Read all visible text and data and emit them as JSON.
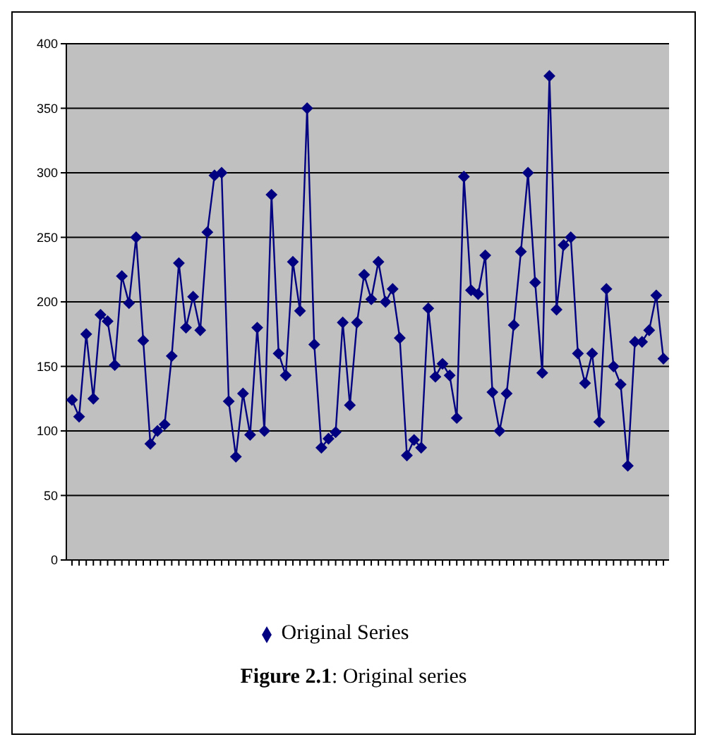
{
  "chart_data": {
    "type": "line",
    "categories": [
      null,
      null,
      null,
      null,
      null,
      null,
      null,
      null,
      null,
      null,
      null,
      null,
      null,
      null,
      null,
      null,
      null,
      null,
      null,
      null,
      null,
      null,
      null,
      null,
      null,
      null,
      null,
      null,
      null,
      null,
      null,
      null,
      null,
      null,
      null,
      null,
      null,
      null,
      null,
      null,
      null,
      null,
      null,
      null,
      null,
      null,
      null,
      null,
      null,
      null,
      null,
      null,
      null,
      null,
      null,
      null,
      null,
      null,
      null,
      null,
      null,
      null,
      null,
      null,
      null,
      null,
      null,
      null,
      null,
      null,
      null,
      null,
      null,
      null,
      null,
      null,
      null,
      null,
      null,
      null,
      null,
      null,
      null,
      null
    ],
    "series": [
      {
        "name": "Original Series",
        "color": "#000080",
        "values": [
          124,
          111,
          175,
          125,
          190,
          185,
          151,
          220,
          199,
          250,
          170,
          90,
          100,
          105,
          158,
          230,
          180,
          204,
          178,
          254,
          298,
          300,
          123,
          80,
          129,
          97,
          180,
          100,
          283,
          160,
          143,
          231,
          193,
          350,
          167,
          87,
          94,
          99,
          184,
          120,
          184,
          221,
          202,
          231,
          200,
          210,
          172,
          81,
          93,
          87,
          195,
          142,
          152,
          143,
          110,
          297,
          209,
          206,
          236,
          130,
          100,
          129,
          182,
          239,
          300,
          215,
          145,
          375,
          194,
          244,
          250,
          160,
          137,
          160,
          107,
          210,
          150,
          136,
          73,
          169,
          169,
          178,
          205,
          156
        ]
      }
    ],
    "ylim": [
      0,
      400
    ],
    "yticks": [
      0,
      50,
      100,
      150,
      200,
      250,
      300,
      350,
      400
    ],
    "grid": "y",
    "legend": "bottom",
    "marker": "diamond",
    "line_style": "solid",
    "tick_labels": "y",
    "annotations": [
      "Figure 2.1: Original series"
    ]
  }
}
